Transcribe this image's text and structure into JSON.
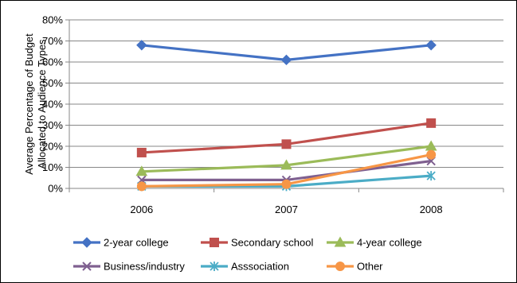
{
  "chart_data": {
    "type": "line",
    "categories": [
      "2006",
      "2007",
      "2008"
    ],
    "ylabel": "Average Percentage of Budget Allocated to Audience Types",
    "ylabel_lines": [
      "Average Percentage of Budget",
      "Allocated to Audience Types"
    ],
    "ylim": [
      0,
      80
    ],
    "yticks": [
      "0%",
      "10%",
      "20%",
      "30%",
      "40%",
      "50%",
      "60%",
      "70%",
      "80%"
    ],
    "grid": true,
    "legend_placement": "bottom",
    "series": [
      {
        "name": "2-year college",
        "values": [
          68,
          61,
          68
        ],
        "color": "#4472C4",
        "marker": "diamond"
      },
      {
        "name": "Secondary school",
        "values": [
          17,
          21,
          31
        ],
        "color": "#C0504D",
        "marker": "square"
      },
      {
        "name": "4-year college",
        "values": [
          8,
          11,
          20
        ],
        "color": "#9BBB59",
        "marker": "triangle"
      },
      {
        "name": "Business/industry",
        "values": [
          4,
          4,
          13
        ],
        "color": "#7F6090",
        "marker": "x"
      },
      {
        "name": "Asssociation",
        "values": [
          1,
          1,
          6
        ],
        "color": "#4BACC6",
        "marker": "star"
      },
      {
        "name": "Other",
        "values": [
          1,
          2,
          16
        ],
        "color": "#F79646",
        "marker": "circle"
      }
    ]
  }
}
